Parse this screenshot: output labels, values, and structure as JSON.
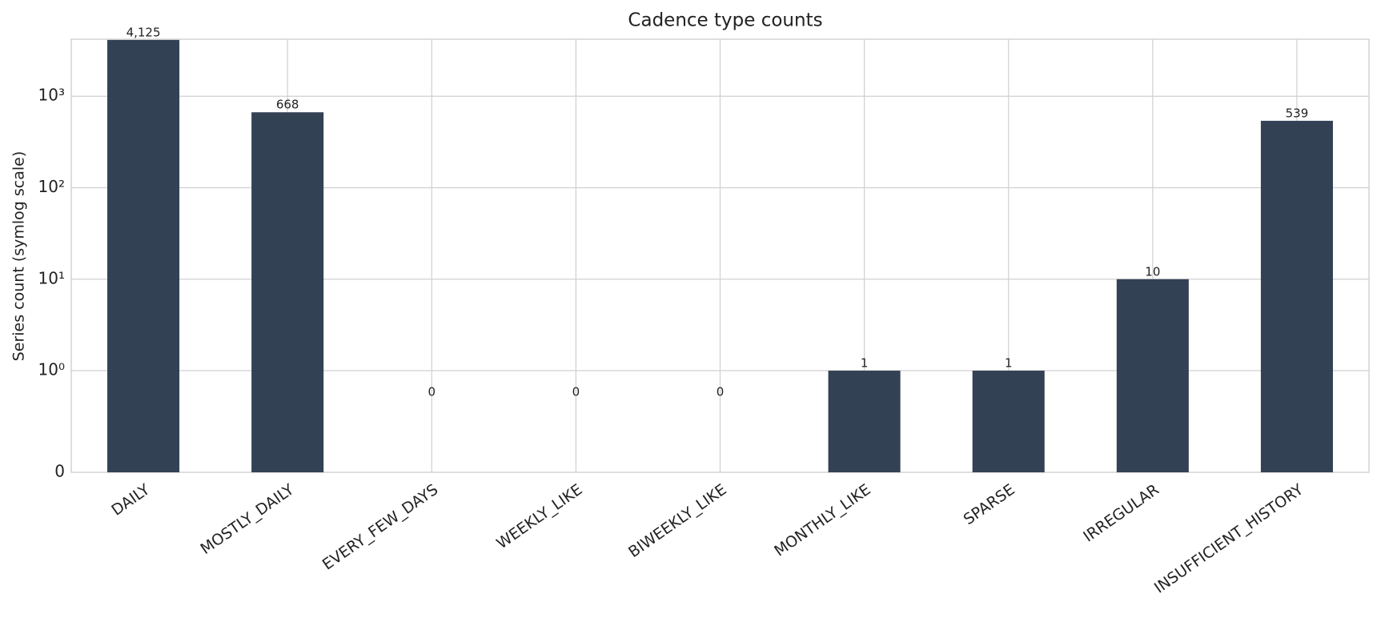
{
  "chart_data": {
    "type": "bar",
    "title": "Cadence type counts",
    "y_label": "Series count (symlog scale)",
    "categories": [
      "DAILY",
      "MOSTLY_DAILY",
      "EVERY_FEW_DAYS",
      "WEEKLY_LIKE",
      "BIWEEKLY_LIKE",
      "MONTHLY_LIKE",
      "SPARSE",
      "IRREGULAR",
      "INSUFFICIENT_HISTORY"
    ],
    "values": [
      4125,
      668,
      0,
      0,
      0,
      1,
      1,
      10,
      539
    ],
    "value_labels": [
      "4,125",
      "668",
      "0",
      "0",
      "0",
      "1",
      "1",
      "10",
      "539"
    ],
    "color": "#334155",
    "scale": "symlog",
    "linthresh": 1,
    "ylim": [
      0,
      4200
    ],
    "yticks": [
      0,
      {
        "value": 1,
        "label": "10⁰"
      },
      {
        "value": 10,
        "label": "10¹"
      },
      {
        "value": 100,
        "label": "10²"
      },
      {
        "value": 1000,
        "label": "10³"
      }
    ],
    "grid": true
  }
}
